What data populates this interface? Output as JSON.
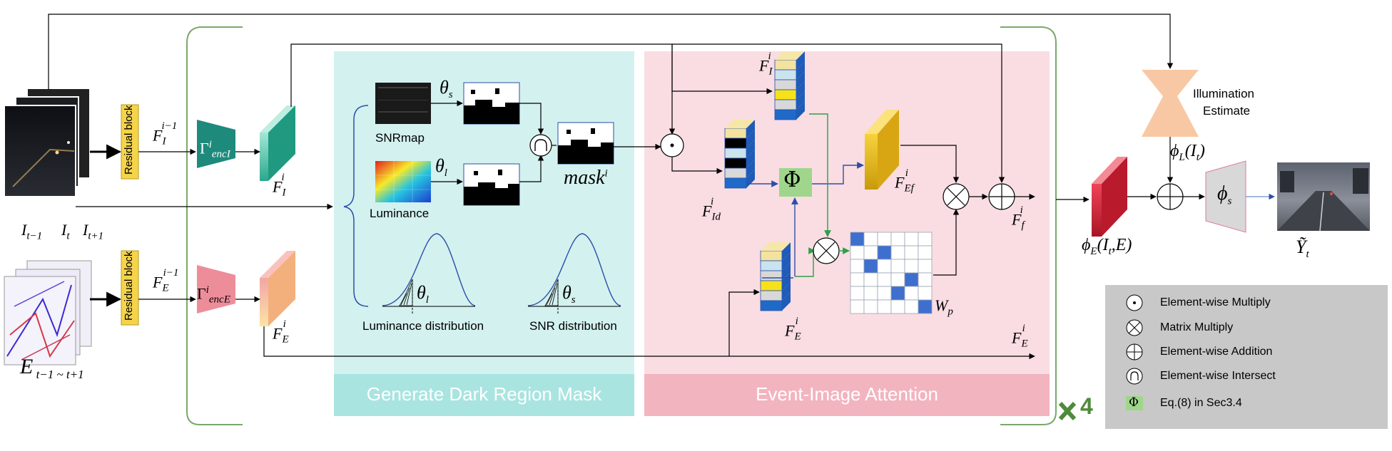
{
  "residual_block_label": "Residual block",
  "banners": {
    "mask": "Generate Dark Region Mask",
    "attention": "Event-Image Attention"
  },
  "labels": {
    "snrmap": "SNRmap",
    "luminance": "Luminance",
    "luminance_dist": "Luminance distribution",
    "snr_dist": "SNR distribution",
    "illumination": "Illumination",
    "estimate": "Estimate",
    "repeat": "4"
  },
  "math": {
    "theta": "θ",
    "theta_s_sub": "s",
    "theta_l_sub": "l",
    "mask": "mask",
    "mask_sup": "i",
    "phi": "Φ",
    "phi_s": "ϕ",
    "phi_s_sub": "s"
  },
  "legend": {
    "items": [
      {
        "symbol": "dot",
        "label": "Element-wise Multiply"
      },
      {
        "symbol": "otimes",
        "label": "Matrix Multiply"
      },
      {
        "symbol": "oplus",
        "label": "Element-wise Addition"
      },
      {
        "symbol": "cap",
        "label": "Element-wise Intersect"
      },
      {
        "symbol": "phi",
        "label": "Eq.(8) in Sec3.4"
      }
    ]
  },
  "colors": {
    "mask_bg": "#d3f1ef",
    "mask_banner": "#a9e4e0",
    "attention_bg": "#f9dde2",
    "attention_banner": "#f2b4bf",
    "residual": "#f5d44a",
    "enc_i": "#1d8a7c",
    "enc_e": "#ee8d9a",
    "legend_bg": "#c8c8c8",
    "phi_green": "#9fd68b",
    "bracket_green": "#5f8f4e",
    "repeat_green": "#4e8b3a"
  }
}
